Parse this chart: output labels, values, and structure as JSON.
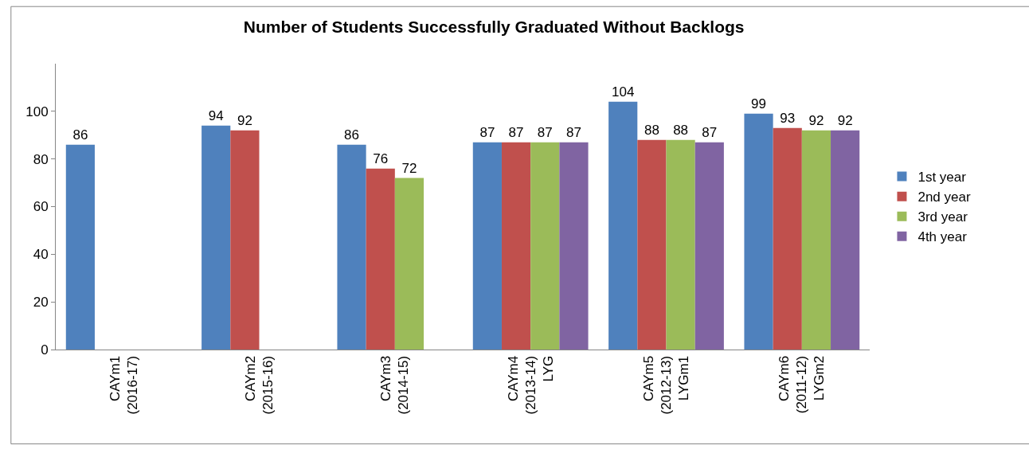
{
  "chart_data": {
    "type": "bar",
    "title": "Number of Students Successfully Graduated Without Backlogs",
    "categories": [
      "CAYm1\n(2016-17)",
      "CAYm2\n(2015-16)",
      "CAYm3\n(2014-15)",
      "CAYm4\n(2013-14)\nLYG",
      "CAYm5\n(2012-13)\nLYGm1",
      "CAYm6\n(2011-12)\nLYGm2"
    ],
    "series": [
      {
        "name": "1st year",
        "color": "#4f81bd",
        "values": [
          86,
          94,
          86,
          87,
          104,
          99
        ]
      },
      {
        "name": "2nd year",
        "color": "#c0504d",
        "values": [
          null,
          92,
          76,
          87,
          88,
          93
        ]
      },
      {
        "name": "3rd year",
        "color": "#9bbb59",
        "values": [
          null,
          null,
          72,
          87,
          88,
          92
        ]
      },
      {
        "name": "4th year",
        "color": "#8064a2",
        "values": [
          null,
          null,
          null,
          87,
          87,
          92
        ]
      }
    ],
    "ylim": [
      0,
      120
    ],
    "yticks": [
      0,
      20,
      40,
      60,
      80,
      100
    ],
    "data_labels": true,
    "legend": "right"
  }
}
